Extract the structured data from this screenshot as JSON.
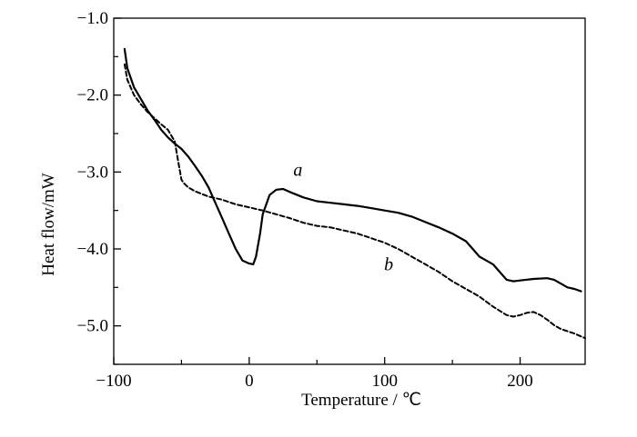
{
  "chart_data": {
    "type": "line",
    "title": "",
    "xlabel": "Temperature / ℃",
    "ylabel": "Heat flow/mW",
    "xlim": [
      -100,
      248
    ],
    "ylim": [
      -5.5,
      -1.0
    ],
    "xticks": [
      -100,
      0,
      100,
      200
    ],
    "xtick_labels": [
      "−100",
      "0",
      "100",
      "200"
    ],
    "yticks": [
      -1.0,
      -2.0,
      -3.0,
      -4.0,
      -5.0
    ],
    "ytick_labels": [
      "−1.0",
      "−2.0",
      "−3.0",
      "−4.0",
      "−5.0"
    ],
    "grid": false,
    "legend": "none",
    "series": [
      {
        "name": "a",
        "style": "solid",
        "x": [
          -92,
          -90,
          -85,
          -80,
          -75,
          -70,
          -65,
          -60,
          -55,
          -50,
          -45,
          -40,
          -35,
          -30,
          -25,
          -20,
          -15,
          -10,
          -5,
          0,
          3,
          5,
          8,
          10,
          15,
          20,
          25,
          30,
          40,
          50,
          60,
          70,
          80,
          90,
          100,
          110,
          120,
          130,
          140,
          150,
          160,
          165,
          170,
          175,
          180,
          185,
          190,
          195,
          200,
          210,
          220,
          225,
          230,
          235,
          240,
          245
        ],
        "y": [
          -1.4,
          -1.65,
          -1.9,
          -2.05,
          -2.2,
          -2.32,
          -2.45,
          -2.55,
          -2.63,
          -2.7,
          -2.8,
          -2.92,
          -3.05,
          -3.2,
          -3.4,
          -3.6,
          -3.8,
          -4.0,
          -4.15,
          -4.19,
          -4.2,
          -4.1,
          -3.8,
          -3.55,
          -3.3,
          -3.23,
          -3.22,
          -3.26,
          -3.33,
          -3.38,
          -3.4,
          -3.42,
          -3.44,
          -3.47,
          -3.5,
          -3.53,
          -3.58,
          -3.65,
          -3.72,
          -3.8,
          -3.9,
          -4.0,
          -4.1,
          -4.15,
          -4.2,
          -4.3,
          -4.4,
          -4.42,
          -4.41,
          -4.39,
          -4.38,
          -4.4,
          -4.45,
          -4.5,
          -4.52,
          -4.55
        ]
      },
      {
        "name": "b",
        "style": "dashed",
        "x": [
          -92,
          -90,
          -85,
          -80,
          -75,
          -70,
          -65,
          -60,
          -55,
          -52,
          -50,
          -48,
          -45,
          -40,
          -30,
          -20,
          -10,
          0,
          10,
          20,
          30,
          40,
          50,
          60,
          70,
          80,
          90,
          100,
          110,
          120,
          130,
          140,
          150,
          160,
          170,
          180,
          190,
          195,
          200,
          205,
          210,
          215,
          220,
          225,
          230,
          240,
          248
        ],
        "y": [
          -1.6,
          -1.8,
          -2.0,
          -2.12,
          -2.22,
          -2.3,
          -2.38,
          -2.45,
          -2.6,
          -2.9,
          -3.1,
          -3.15,
          -3.2,
          -3.25,
          -3.32,
          -3.36,
          -3.42,
          -3.46,
          -3.5,
          -3.55,
          -3.6,
          -3.66,
          -3.7,
          -3.72,
          -3.76,
          -3.8,
          -3.86,
          -3.92,
          -4.0,
          -4.1,
          -4.2,
          -4.3,
          -4.42,
          -4.52,
          -4.62,
          -4.75,
          -4.86,
          -4.88,
          -4.86,
          -4.83,
          -4.82,
          -4.86,
          -4.92,
          -4.99,
          -5.04,
          -5.1,
          -5.16
        ]
      }
    ],
    "annotations": [
      {
        "text": "a",
        "x": 36,
        "y": -3.05
      },
      {
        "text": "b",
        "x": 103,
        "y": -4.28
      }
    ]
  }
}
